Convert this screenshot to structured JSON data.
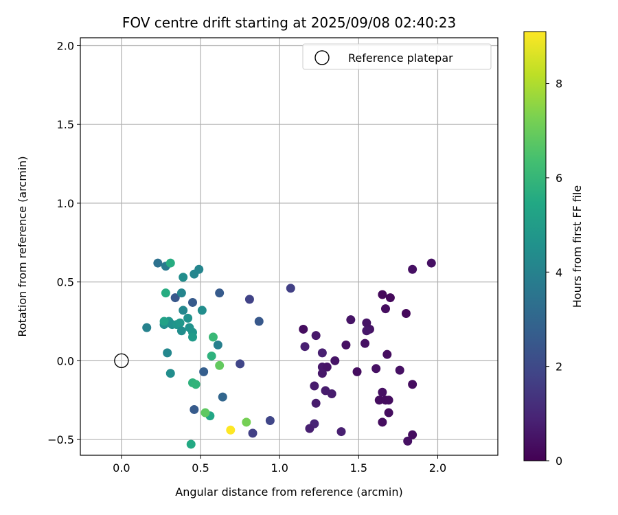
{
  "chart_data": {
    "type": "scatter",
    "title": "FOV centre drift starting at 2025/09/08 02:40:23",
    "xlabel": "Angular distance from reference (arcmin)",
    "ylabel": "Rotation from reference (arcmin)",
    "xlim": [
      -0.26,
      2.38
    ],
    "ylim": [
      -0.6,
      2.05
    ],
    "xticks": [
      0.0,
      0.5,
      1.0,
      1.5,
      2.0
    ],
    "xtick_labels": [
      "0.0",
      "0.5",
      "1.0",
      "1.5",
      "2.0"
    ],
    "yticks": [
      -0.5,
      0.0,
      0.5,
      1.0,
      1.5,
      2.0
    ],
    "ytick_labels": [
      "−0.5",
      "0.0",
      "0.5",
      "1.0",
      "1.5",
      "2.0"
    ],
    "grid": true,
    "legend": {
      "position": "top-right",
      "label": "Reference platepar"
    },
    "reference_point": {
      "x": 0.0,
      "y": 0.0
    },
    "colorbar": {
      "label": "Hours from first FF file",
      "colormap": "viridis",
      "range": [
        0,
        9.1
      ],
      "ticks": [
        0,
        2,
        4,
        6,
        8
      ],
      "tick_labels": [
        "0",
        "2",
        "4",
        "6",
        "8"
      ]
    },
    "points": [
      {
        "x": 1.96,
        "y": 0.62,
        "h": 0.4
      },
      {
        "x": 1.84,
        "y": 0.58,
        "h": 0.4
      },
      {
        "x": 1.65,
        "y": 0.42,
        "h": 0.2
      },
      {
        "x": 1.7,
        "y": 0.4,
        "h": 0.2
      },
      {
        "x": 1.67,
        "y": 0.33,
        "h": 0.3
      },
      {
        "x": 1.8,
        "y": 0.3,
        "h": 0.2
      },
      {
        "x": 1.45,
        "y": 0.26,
        "h": 0.5
      },
      {
        "x": 1.55,
        "y": 0.24,
        "h": 0.5
      },
      {
        "x": 1.57,
        "y": 0.2,
        "h": 0.5
      },
      {
        "x": 1.55,
        "y": 0.19,
        "h": 0.6
      },
      {
        "x": 1.15,
        "y": 0.2,
        "h": 0.3
      },
      {
        "x": 1.23,
        "y": 0.16,
        "h": 0.6
      },
      {
        "x": 1.54,
        "y": 0.11,
        "h": 0.4
      },
      {
        "x": 1.42,
        "y": 0.1,
        "h": 0.4
      },
      {
        "x": 1.16,
        "y": 0.09,
        "h": 0.8
      },
      {
        "x": 1.27,
        "y": 0.05,
        "h": 0.8
      },
      {
        "x": 1.68,
        "y": 0.04,
        "h": 0.3
      },
      {
        "x": 1.35,
        "y": 0.0,
        "h": 0.5
      },
      {
        "x": 1.27,
        "y": -0.04,
        "h": 0.6
      },
      {
        "x": 1.3,
        "y": -0.04,
        "h": 0.5
      },
      {
        "x": 1.61,
        "y": -0.05,
        "h": 0.4
      },
      {
        "x": 1.76,
        "y": -0.06,
        "h": 0.4
      },
      {
        "x": 1.49,
        "y": -0.07,
        "h": 0.3
      },
      {
        "x": 1.27,
        "y": -0.08,
        "h": 0.6
      },
      {
        "x": 1.22,
        "y": -0.16,
        "h": 0.7
      },
      {
        "x": 1.84,
        "y": -0.15,
        "h": 0.3
      },
      {
        "x": 1.29,
        "y": -0.19,
        "h": 0.7
      },
      {
        "x": 1.33,
        "y": -0.21,
        "h": 0.7
      },
      {
        "x": 1.65,
        "y": -0.2,
        "h": 0.4
      },
      {
        "x": 1.63,
        "y": -0.25,
        "h": 0.3
      },
      {
        "x": 1.67,
        "y": -0.25,
        "h": 0.3
      },
      {
        "x": 1.69,
        "y": -0.25,
        "h": 0.3
      },
      {
        "x": 1.23,
        "y": -0.27,
        "h": 0.7
      },
      {
        "x": 1.69,
        "y": -0.33,
        "h": 0.3
      },
      {
        "x": 1.65,
        "y": -0.39,
        "h": 0.3
      },
      {
        "x": 1.22,
        "y": -0.4,
        "h": 0.9
      },
      {
        "x": 1.19,
        "y": -0.43,
        "h": 0.8
      },
      {
        "x": 1.39,
        "y": -0.45,
        "h": 0.8
      },
      {
        "x": 1.84,
        "y": -0.47,
        "h": 0.3
      },
      {
        "x": 1.81,
        "y": -0.51,
        "h": 0.4
      },
      {
        "x": 1.07,
        "y": 0.46,
        "h": 1.7
      },
      {
        "x": 0.81,
        "y": 0.39,
        "h": 1.8
      },
      {
        "x": 0.87,
        "y": 0.25,
        "h": 2.5
      },
      {
        "x": 0.75,
        "y": -0.02,
        "h": 1.9
      },
      {
        "x": 0.94,
        "y": -0.38,
        "h": 1.9
      },
      {
        "x": 0.83,
        "y": -0.46,
        "h": 1.7
      },
      {
        "x": 0.62,
        "y": 0.43,
        "h": 2.6
      },
      {
        "x": 0.34,
        "y": 0.4,
        "h": 2.5
      },
      {
        "x": 0.45,
        "y": 0.37,
        "h": 2.6
      },
      {
        "x": 0.52,
        "y": -0.07,
        "h": 2.7
      },
      {
        "x": 0.64,
        "y": -0.23,
        "h": 3.0
      },
      {
        "x": 0.46,
        "y": -0.31,
        "h": 2.6
      },
      {
        "x": 0.23,
        "y": 0.62,
        "h": 3.4
      },
      {
        "x": 0.28,
        "y": 0.6,
        "h": 3.7
      },
      {
        "x": 0.49,
        "y": 0.58,
        "h": 4.1
      },
      {
        "x": 0.46,
        "y": 0.55,
        "h": 4.1
      },
      {
        "x": 0.39,
        "y": 0.53,
        "h": 4.4
      },
      {
        "x": 0.38,
        "y": 0.43,
        "h": 4.1
      },
      {
        "x": 0.39,
        "y": 0.32,
        "h": 4.2
      },
      {
        "x": 0.51,
        "y": 0.32,
        "h": 4.4
      },
      {
        "x": 0.16,
        "y": 0.21,
        "h": 4.0
      },
      {
        "x": 0.61,
        "y": 0.1,
        "h": 3.9
      },
      {
        "x": 0.29,
        "y": 0.05,
        "h": 4.2
      },
      {
        "x": 0.31,
        "y": -0.08,
        "h": 4.4
      },
      {
        "x": 0.42,
        "y": 0.27,
        "h": 4.6
      },
      {
        "x": 0.27,
        "y": 0.23,
        "h": 4.4
      },
      {
        "x": 0.3,
        "y": 0.25,
        "h": 4.7
      },
      {
        "x": 0.32,
        "y": 0.23,
        "h": 4.5
      },
      {
        "x": 0.35,
        "y": 0.23,
        "h": 4.7
      },
      {
        "x": 0.37,
        "y": 0.24,
        "h": 4.8
      },
      {
        "x": 0.38,
        "y": 0.19,
        "h": 4.4
      },
      {
        "x": 0.43,
        "y": 0.21,
        "h": 4.6
      },
      {
        "x": 0.45,
        "y": 0.18,
        "h": 4.7
      },
      {
        "x": 0.45,
        "y": 0.15,
        "h": 4.9
      },
      {
        "x": 0.27,
        "y": 0.25,
        "h": 5.2
      },
      {
        "x": 0.28,
        "y": 0.43,
        "h": 5.6
      },
      {
        "x": 0.31,
        "y": 0.62,
        "h": 5.6
      },
      {
        "x": 0.58,
        "y": 0.15,
        "h": 6.1
      },
      {
        "x": 0.57,
        "y": 0.03,
        "h": 5.8
      },
      {
        "x": 0.62,
        "y": -0.03,
        "h": 6.9
      },
      {
        "x": 0.45,
        "y": -0.14,
        "h": 5.8
      },
      {
        "x": 0.47,
        "y": -0.15,
        "h": 5.9
      },
      {
        "x": 0.56,
        "y": -0.35,
        "h": 5.4
      },
      {
        "x": 0.53,
        "y": -0.33,
        "h": 6.8
      },
      {
        "x": 0.44,
        "y": -0.53,
        "h": 5.5
      },
      {
        "x": 0.79,
        "y": -0.39,
        "h": 7.2
      },
      {
        "x": 0.69,
        "y": -0.44,
        "h": 9.1
      }
    ]
  }
}
